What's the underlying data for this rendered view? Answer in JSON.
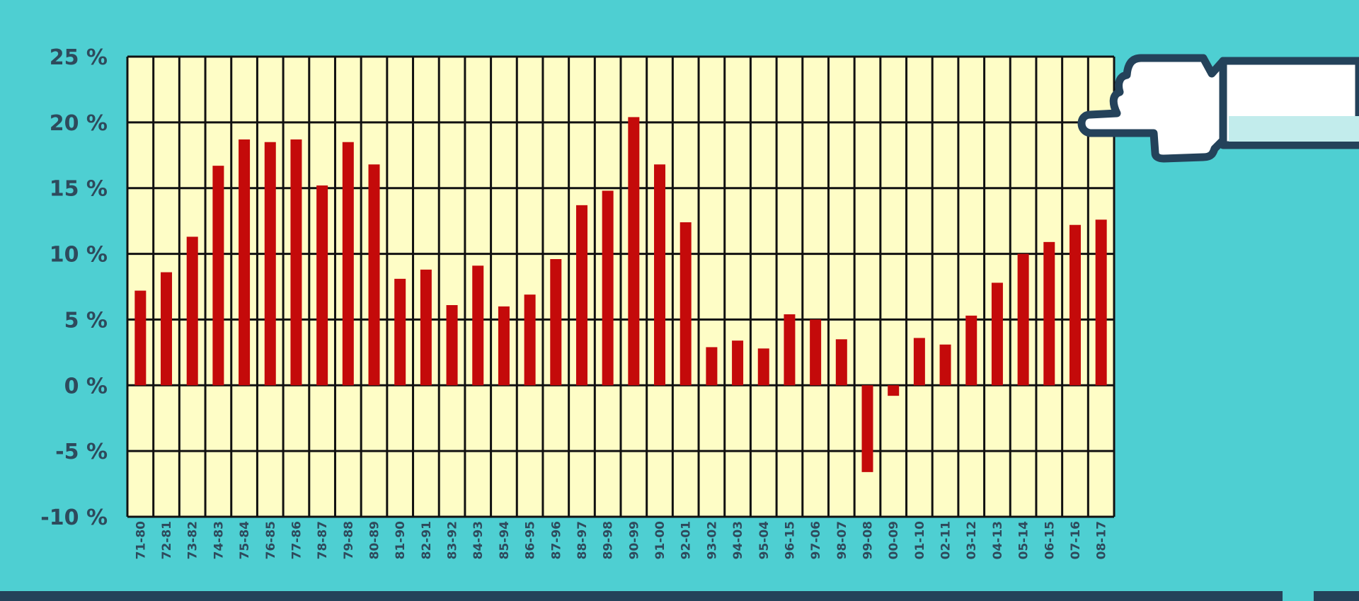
{
  "colors": {
    "background": "#4ecfd2",
    "plot_background": "#fefdc6",
    "bar": "#c40a0a",
    "grid": "#111111",
    "axis_text": "#2e4a5c",
    "hand_outline": "#24425a"
  },
  "icons": [
    "pointing-hand-icon"
  ],
  "chart_data": {
    "type": "bar",
    "title": "",
    "xlabel": "",
    "ylabel": "",
    "ylim": [
      -10,
      25
    ],
    "yticks": [
      25,
      20,
      15,
      10,
      5,
      0,
      -5,
      -10
    ],
    "ytick_labels": [
      "25 %",
      "20 %",
      "15 %",
      "10 %",
      "5 %",
      "0 %",
      "-5 %",
      "-10 %"
    ],
    "grid": true,
    "categories": [
      "71-80",
      "72-81",
      "73-82",
      "74-83",
      "75-84",
      "76-85",
      "77-86",
      "78-87",
      "79-88",
      "80-89",
      "81-90",
      "82-91",
      "83-92",
      "84-93",
      "85-94",
      "86-95",
      "87-96",
      "88-97",
      "89-98",
      "90-99",
      "91-00",
      "92-01",
      "93-02",
      "94-03",
      "95-04",
      "96-15",
      "97-06",
      "98-07",
      "99-08",
      "00-09",
      "01-10",
      "02-11",
      "03-12",
      "04-13",
      "05-14",
      "06-15",
      "07-16",
      "08-17"
    ],
    "values": [
      7.2,
      8.6,
      11.3,
      16.7,
      18.7,
      18.5,
      18.7,
      15.2,
      18.5,
      16.8,
      8.1,
      8.8,
      6.1,
      9.1,
      6.0,
      6.9,
      9.6,
      13.7,
      14.8,
      20.4,
      16.8,
      12.4,
      2.9,
      3.4,
      2.8,
      5.4,
      5.0,
      3.5,
      -6.6,
      -0.8,
      3.6,
      3.1,
      5.3,
      7.8,
      10.0,
      10.9,
      12.2,
      12.6
    ]
  }
}
